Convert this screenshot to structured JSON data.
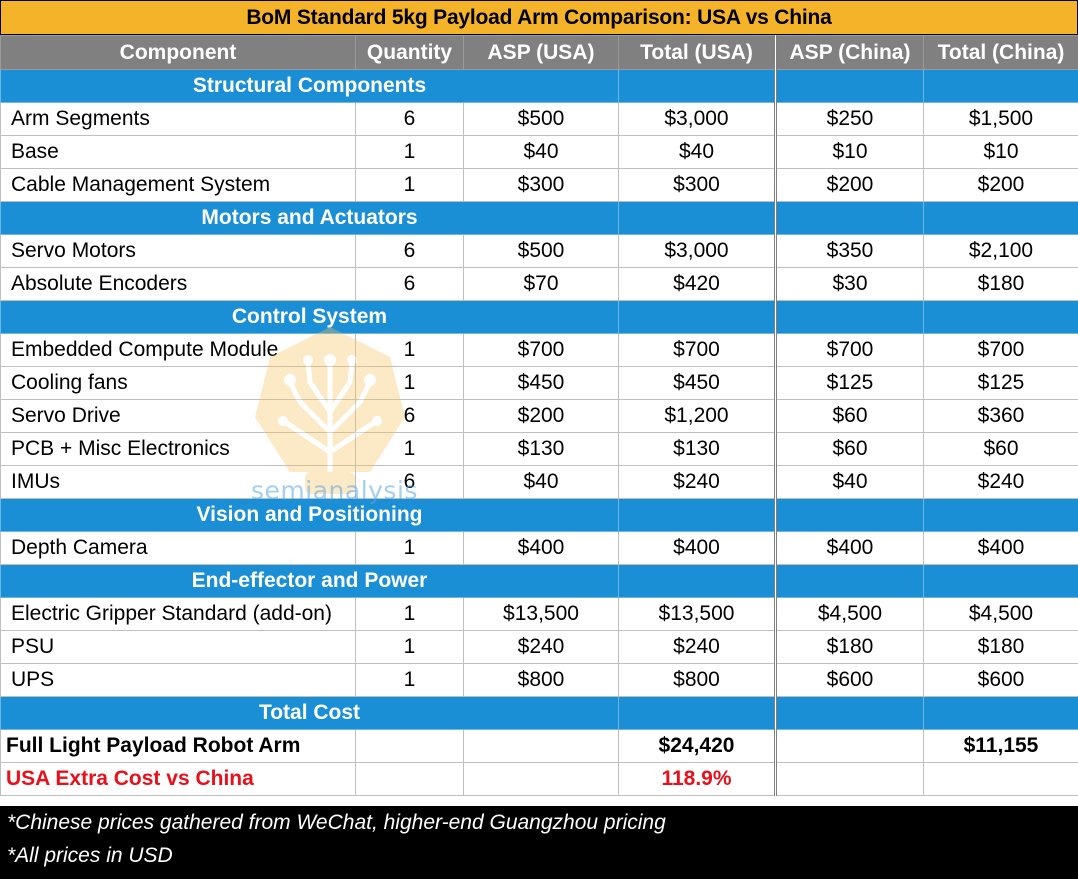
{
  "title": "BoM Standard 5kg Payload Arm Comparison: USA vs China",
  "headers": {
    "component": "Component",
    "quantity": "Quantity",
    "asp_usa": "ASP (USA)",
    "total_usa": "Total (USA)",
    "asp_china": "ASP (China)",
    "total_china": "Total (China)"
  },
  "sections": [
    {
      "title": "Structural Components",
      "rows": [
        {
          "component": "Arm Segments",
          "qty": "6",
          "asp_usa": "$500",
          "total_usa": "$3,000",
          "asp_china": "$250",
          "total_china": "$1,500"
        },
        {
          "component": "Base",
          "qty": "1",
          "asp_usa": "$40",
          "total_usa": "$40",
          "asp_china": "$10",
          "total_china": "$10"
        },
        {
          "component": "Cable Management System",
          "qty": "1",
          "asp_usa": "$300",
          "total_usa": "$300",
          "asp_china": "$200",
          "total_china": "$200"
        }
      ]
    },
    {
      "title": "Motors and Actuators",
      "rows": [
        {
          "component": "Servo Motors",
          "qty": "6",
          "asp_usa": "$500",
          "total_usa": "$3,000",
          "asp_china": "$350",
          "total_china": "$2,100"
        },
        {
          "component": "Absolute Encoders",
          "qty": "6",
          "asp_usa": "$70",
          "total_usa": "$420",
          "asp_china": "$30",
          "total_china": "$180"
        }
      ]
    },
    {
      "title": "Control System",
      "rows": [
        {
          "component": "Embedded Compute Module",
          "qty": "1",
          "asp_usa": "$700",
          "total_usa": "$700",
          "asp_china": "$700",
          "total_china": "$700"
        },
        {
          "component": "Cooling fans",
          "qty": "1",
          "asp_usa": "$450",
          "total_usa": "$450",
          "asp_china": "$125",
          "total_china": "$125"
        },
        {
          "component": "Servo Drive",
          "qty": "6",
          "asp_usa": "$200",
          "total_usa": "$1,200",
          "asp_china": "$60",
          "total_china": "$360"
        },
        {
          "component": "PCB + Misc Electronics",
          "qty": "1",
          "asp_usa": "$130",
          "total_usa": "$130",
          "asp_china": "$60",
          "total_china": "$60"
        },
        {
          "component": "IMUs",
          "qty": "6",
          "asp_usa": "$40",
          "total_usa": "$240",
          "asp_china": "$40",
          "total_china": "$240"
        }
      ]
    },
    {
      "title": "Vision and Positioning",
      "rows": [
        {
          "component": "Depth Camera",
          "qty": "1",
          "asp_usa": "$400",
          "total_usa": "$400",
          "asp_china": "$400",
          "total_china": "$400"
        }
      ]
    },
    {
      "title": "End-effector and Power",
      "rows": [
        {
          "component": "Electric Gripper Standard (add-on)",
          "qty": "1",
          "asp_usa": "$13,500",
          "total_usa": "$13,500",
          "asp_china": "$4,500",
          "total_china": "$4,500"
        },
        {
          "component": "PSU",
          "qty": "1",
          "asp_usa": "$240",
          "total_usa": "$240",
          "asp_china": "$180",
          "total_china": "$180"
        },
        {
          "component": "UPS",
          "qty": "1",
          "asp_usa": "$800",
          "total_usa": "$800",
          "asp_china": "$600",
          "total_china": "$600"
        }
      ]
    }
  ],
  "total_section": {
    "title": "Total Cost",
    "full_row": {
      "label": "Full Light Payload Robot Arm",
      "total_usa": "$24,420",
      "total_china": "$11,155"
    },
    "extra_row": {
      "label": "USA Extra Cost vs China",
      "value": "118.9%"
    }
  },
  "notes": [
    "*Chinese prices gathered from WeChat, higher-end Guangzhou pricing",
    "*All prices in USD"
  ],
  "watermark": {
    "text": "semianalysis",
    "icon": "tree-circuit-icon"
  },
  "colors": {
    "title_bg": "#f5b32a",
    "header_bg": "#808080",
    "section_bg": "#1b8fd6",
    "highlight_red": "#e8101a",
    "notes_bg": "#000000"
  }
}
